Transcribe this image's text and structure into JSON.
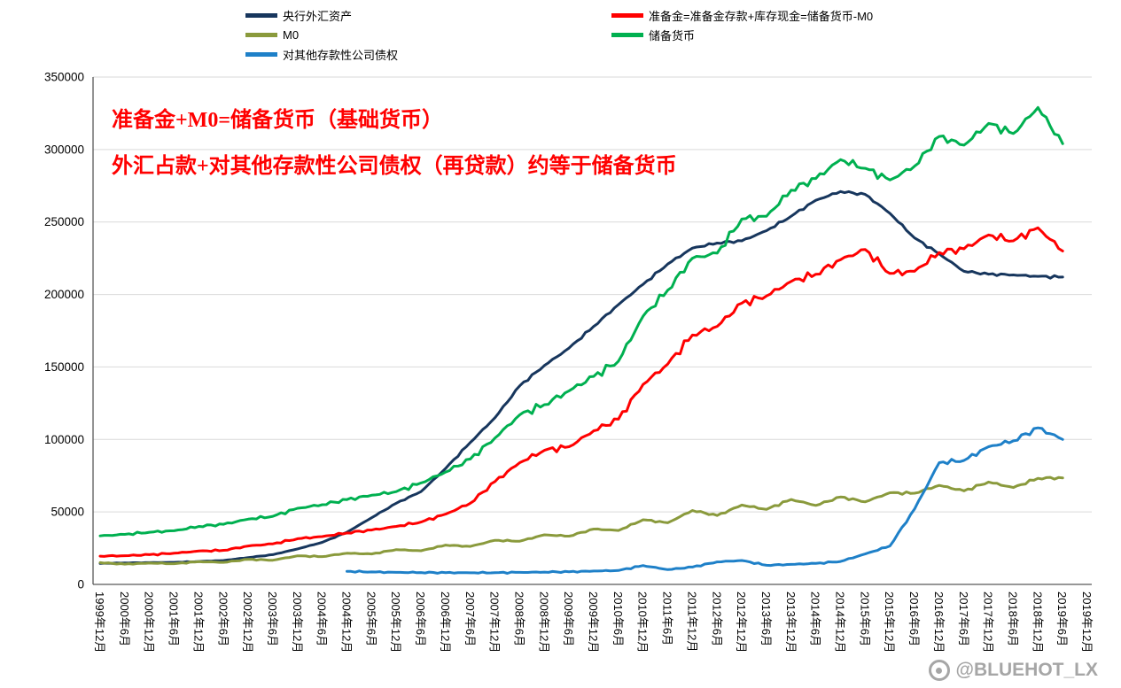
{
  "annotation": {
    "line1": "准备金+M0=储备货币（基础货币）",
    "line2": "外汇占款+对其他存款性公司债权（再贷款）约等于储备货币",
    "color": "#ff0000"
  },
  "watermark": {
    "text": "@BLUEHOT_LX"
  },
  "axis": {
    "grid_color": "#d9d9d9",
    "axis_color": "#595959",
    "label_color": "#000000"
  },
  "chart_data": {
    "type": "line",
    "title": "",
    "xlabel": "",
    "ylabel": "",
    "ylim": [
      0,
      350000
    ],
    "ytick": 50000,
    "grid": true,
    "legend_position": "top",
    "categories": [
      "1999年12月",
      "2000年6月",
      "2000年12月",
      "2001年6月",
      "2001年12月",
      "2002年6月",
      "2002年12月",
      "2003年6月",
      "2003年12月",
      "2004年6月",
      "2004年12月",
      "2005年6月",
      "2005年12月",
      "2006年6月",
      "2006年12月",
      "2007年6月",
      "2007年12月",
      "2008年6月",
      "2008年12月",
      "2009年6月",
      "2009年12月",
      "2010年6月",
      "2010年12月",
      "2011年6月",
      "2011年12月",
      "2012年6月",
      "2012年12月",
      "2013年6月",
      "2013年12月",
      "2014年6月",
      "2014年12月",
      "2015年6月",
      "2015年12月",
      "2016年6月",
      "2016年12月",
      "2017年6月",
      "2017年12月",
      "2018年6月",
      "2018年12月",
      "2019年6月",
      "2019年12月"
    ],
    "series": [
      {
        "name": "央行外汇资产",
        "color": "#17365d",
        "values": [
          14500,
          14800,
          15000,
          15200,
          15800,
          16500,
          18500,
          20500,
          24500,
          29000,
          36000,
          46000,
          56000,
          64000,
          80000,
          98000,
          115000,
          137000,
          151000,
          163000,
          178000,
          193000,
          207000,
          221000,
          232000,
          235500,
          237000,
          244000,
          254000,
          265000,
          271000,
          269000,
          256000,
          239000,
          228000,
          216000,
          214000,
          213500,
          212500,
          212000,
          null
        ]
      },
      {
        "name": "准备金=准备金存款+库存现金=储备货币-M0",
        "color": "#ff0000",
        "values": [
          19500,
          19800,
          20500,
          21500,
          23000,
          23500,
          26500,
          28000,
          31500,
          33000,
          35500,
          37500,
          40000,
          43000,
          48500,
          56000,
          71000,
          84000,
          92500,
          95000,
          106000,
          114000,
          138000,
          152000,
          172000,
          178000,
          194000,
          199000,
          209000,
          214000,
          224000,
          231000,
          214500,
          216000,
          229000,
          231500,
          241000,
          237000,
          246000,
          230000,
          null
        ]
      },
      {
        "name": "M0",
        "color": "#8a9a3c",
        "values": [
          15000,
          14000,
          14700,
          14300,
          15700,
          15200,
          17300,
          16700,
          19700,
          19200,
          21500,
          21000,
          24000,
          23200,
          27100,
          26200,
          30400,
          29800,
          34200,
          33300,
          38200,
          37200,
          44600,
          42500,
          51000,
          47500,
          54700,
          51800,
          58600,
          54500,
          60300,
          57000,
          63200,
          62900,
          68300,
          64500,
          70600,
          66800,
          73200,
          73500,
          null
        ]
      },
      {
        "name": "储备货币",
        "color": "#00b050",
        "values": [
          33500,
          34500,
          36000,
          37000,
          40000,
          41500,
          45000,
          47000,
          52500,
          55000,
          58500,
          61500,
          64000,
          70000,
          77500,
          86500,
          101000,
          117000,
          124000,
          133500,
          143500,
          154000,
          185000,
          203000,
          225000,
          228500,
          252000,
          254000,
          272000,
          280000,
          293000,
          287000,
          279000,
          288500,
          309000,
          303000,
          318000,
          311000,
          329000,
          304000,
          null
        ]
      },
      {
        "name": "对其他存款性公司债权",
        "color": "#1e80c8",
        "values": [
          null,
          null,
          null,
          null,
          null,
          null,
          null,
          null,
          null,
          null,
          9000,
          8600,
          8300,
          8200,
          8100,
          8000,
          8100,
          8300,
          8500,
          8700,
          9200,
          9600,
          13000,
          10200,
          12000,
          15500,
          16500,
          13200,
          13800,
          14500,
          15800,
          21000,
          26500,
          52000,
          84000,
          85500,
          95000,
          99000,
          108000,
          100000,
          null
        ]
      }
    ]
  }
}
